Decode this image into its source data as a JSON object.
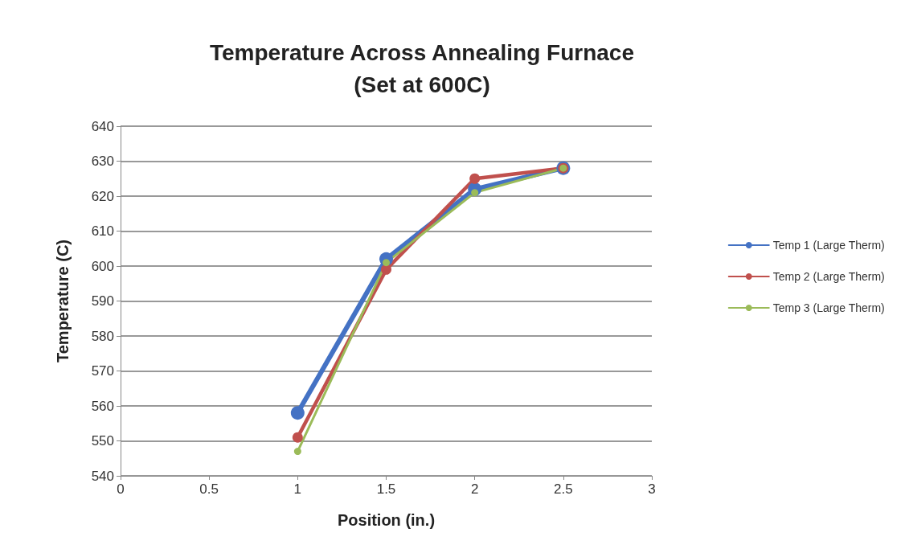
{
  "chart_data": {
    "type": "line",
    "title": "Temperature Across Annealing Furnace\n(Set at 600C)",
    "xlabel": "Position (in.)",
    "ylabel": "Temperature (C)",
    "x": [
      1,
      1.5,
      2,
      2.5
    ],
    "series": [
      {
        "name": "Temp 1 (Large Therm)",
        "color": "#4472c4",
        "values": [
          558,
          602,
          622,
          628
        ]
      },
      {
        "name": "Temp 2 (Large Therm)",
        "color": "#c0504d",
        "values": [
          551,
          599,
          625,
          628
        ]
      },
      {
        "name": "Temp 3 (Large Therm)",
        "color": "#9bbb59",
        "values": [
          547,
          601,
          621,
          628
        ]
      }
    ],
    "xlim": [
      0,
      3
    ],
    "xticks": [
      0,
      0.5,
      1,
      1.5,
      2,
      2.5,
      3
    ],
    "ylim": [
      540,
      640
    ],
    "yticks": [
      540,
      550,
      560,
      570,
      580,
      590,
      600,
      610,
      620,
      630,
      640
    ],
    "grid": "y",
    "legend": "right",
    "marker": "circle",
    "line_style": "solid"
  }
}
